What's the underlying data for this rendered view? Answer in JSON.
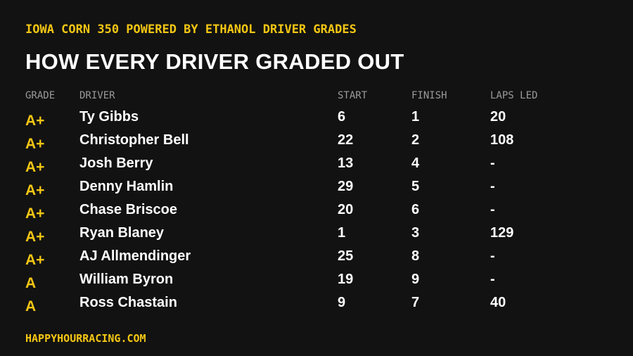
{
  "header": {
    "subtitle": "IOWA CORN 350 POWERED BY ETHANOL DRIVER GRADES",
    "title": "HOW EVERY DRIVER GRADED OUT"
  },
  "table": {
    "columns": [
      "GRADE",
      "DRIVER",
      "START",
      "FINISH",
      "LAPS LED"
    ],
    "rows": [
      [
        "A+",
        "Ty Gibbs",
        6,
        1,
        20
      ],
      [
        "A+",
        "Christopher Bell",
        22,
        2,
        108
      ],
      [
        "A+",
        "Josh Berry",
        13,
        4,
        "-"
      ],
      [
        "A+",
        "Denny Hamlin",
        29,
        5,
        "-"
      ],
      [
        "A+",
        "Chase Briscoe",
        20,
        6,
        "-"
      ],
      [
        "A+",
        "Ryan Blaney",
        1,
        3,
        129
      ],
      [
        "A+",
        "AJ Allmendinger",
        25,
        8,
        "-"
      ],
      [
        "A",
        "William Byron",
        19,
        9,
        "-"
      ],
      [
        "A",
        "Ross Chastain",
        9,
        7,
        40
      ]
    ]
  },
  "footer": {
    "source": "HAPPYHOURRACING.COM"
  }
}
